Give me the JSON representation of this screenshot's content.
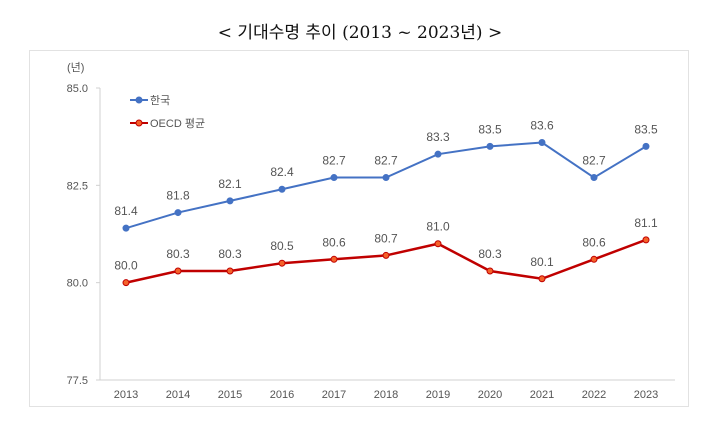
{
  "chart_data": {
    "type": "line",
    "title": "< 기대수명 추이 (2013 ~ 2023년) >",
    "ylabel": "(년)",
    "xlabel": "",
    "ylim": [
      77.5,
      85.0
    ],
    "yticks": [
      "77.5",
      "80.0",
      "82.5",
      "85.0"
    ],
    "categories": [
      "2013",
      "2014",
      "2015",
      "2016",
      "2017",
      "2018",
      "2019",
      "2020",
      "2021",
      "2022",
      "2023"
    ],
    "grid": false,
    "legend": "top-left",
    "series": [
      {
        "name": "한국",
        "color": "#4472C4",
        "values": [
          81.4,
          81.8,
          82.1,
          82.4,
          82.7,
          82.7,
          83.3,
          83.5,
          83.6,
          82.7,
          83.5
        ]
      },
      {
        "name": "OECD 평균",
        "color": "#C00000",
        "marker_color": "#F4622A",
        "values": [
          80.0,
          80.3,
          80.3,
          80.5,
          80.6,
          80.7,
          81.0,
          80.3,
          80.1,
          80.6,
          81.1
        ]
      }
    ]
  }
}
